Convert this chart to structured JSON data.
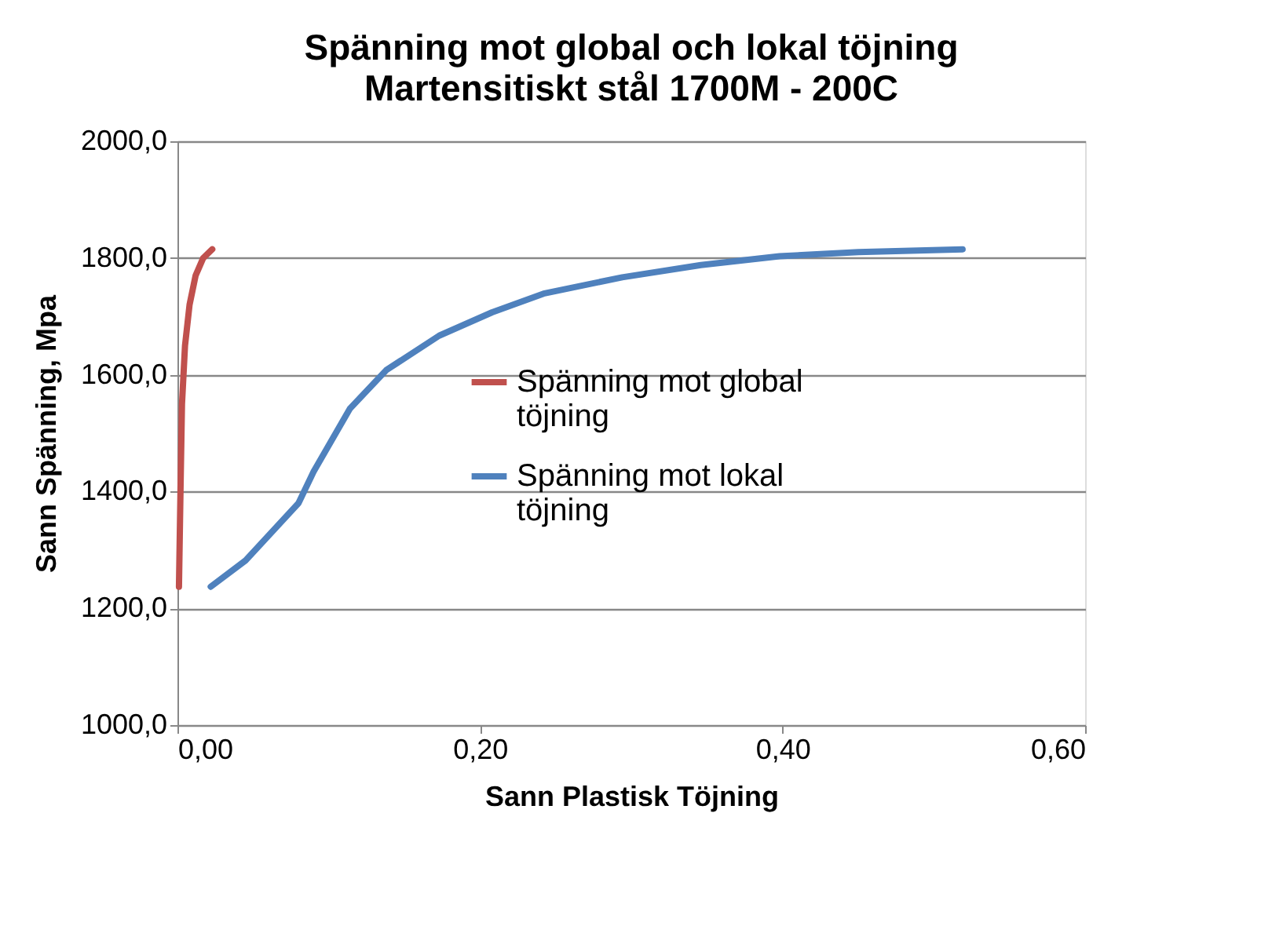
{
  "chart_data": {
    "type": "line",
    "title": "Spänning mot global och lokal töjning",
    "subtitle": "Martensitiskt stål 1700M - 200C",
    "xlabel": "Sann Plastisk Töjning",
    "ylabel": "Sann Spänning, Mpa",
    "xlim": [
      0,
      0.6
    ],
    "xticks": [
      {
        "value": 0,
        "label": "0,00"
      },
      {
        "value": 0.2,
        "label": "0,20"
      },
      {
        "value": 0.4,
        "label": "0,40"
      },
      {
        "value": 0.6,
        "label": "0,60"
      }
    ],
    "ylim": [
      1000,
      2000
    ],
    "yticks": [
      {
        "value": 1000,
        "label": "1000,0"
      },
      {
        "value": 1200,
        "label": "1200,0"
      },
      {
        "value": 1400,
        "label": "1400,0"
      },
      {
        "value": 1600,
        "label": "1600,0"
      },
      {
        "value": 1800,
        "label": "1800,0"
      },
      {
        "value": 2000,
        "label": "2000,0"
      }
    ],
    "grid": "y",
    "legend": "center",
    "line_style": "solid",
    "marker": "none",
    "series": [
      {
        "name": "Spänning mot global töjning",
        "color": "#c0504d",
        "x": [
          0.001,
          0.002,
          0.003,
          0.005,
          0.008,
          0.012,
          0.017,
          0.023
        ],
        "values": [
          1237,
          1400,
          1550,
          1650,
          1720,
          1770,
          1800,
          1815
        ]
      },
      {
        "name": "Spänning mot lokal töjning",
        "color": "#4f81bd",
        "x": [
          0.022,
          0.045,
          0.08,
          0.09,
          0.114,
          0.138,
          0.173,
          0.208,
          0.242,
          0.294,
          0.346,
          0.398,
          0.45,
          0.519
        ],
        "values": [
          1237,
          1282,
          1380,
          1434,
          1542,
          1608,
          1667,
          1707,
          1739,
          1767,
          1788,
          1803,
          1810,
          1815
        ]
      }
    ]
  }
}
